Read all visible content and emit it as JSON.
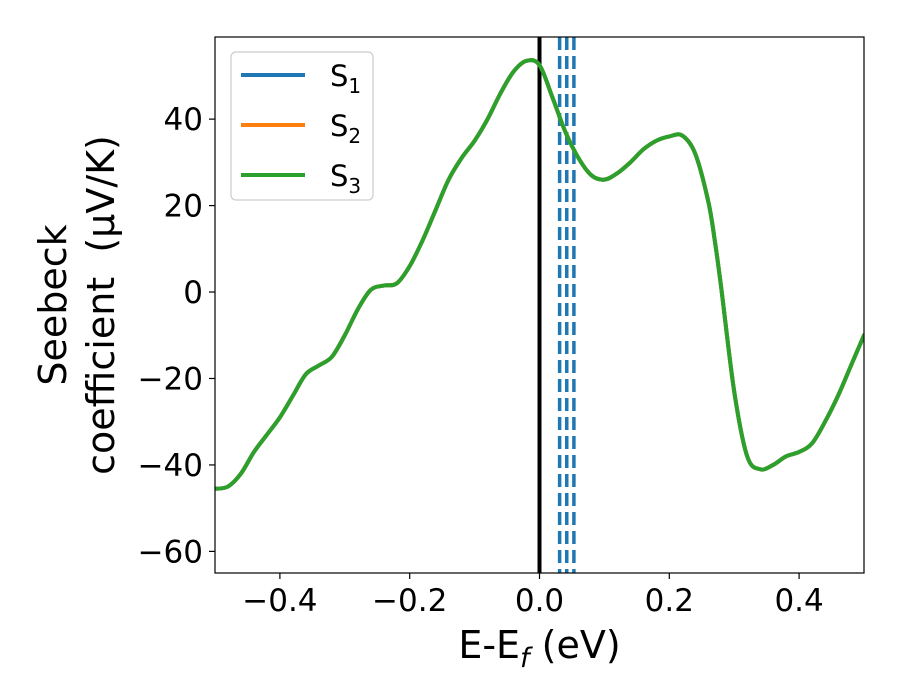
{
  "chart_data": {
    "type": "line",
    "xlabel": "E-E",
    "xlabel_sub": "f",
    "xlabel_unit": "(eV)",
    "ylabel_line1": "Seebeck",
    "ylabel_line2": "coefficient  (μV/K)",
    "xlim": [
      -0.5,
      0.5
    ],
    "ylim": [
      -65,
      59
    ],
    "x_ticks": [
      -0.4,
      -0.2,
      0.0,
      0.2,
      0.4
    ],
    "x_tick_labels": [
      "−0.4",
      "−0.2",
      "0.0",
      "0.2",
      "0.4"
    ],
    "y_ticks": [
      -60,
      -40,
      -20,
      0,
      20,
      40
    ],
    "y_tick_labels": [
      "−60",
      "−40",
      "−20",
      "0",
      "20",
      "40"
    ],
    "legend_position": "upper left",
    "grid": false,
    "series": [
      {
        "name": "S",
        "sub": "1",
        "color": "#1f77b4",
        "x": [
          -0.5,
          -0.48,
          -0.46,
          -0.44,
          -0.42,
          -0.4,
          -0.38,
          -0.36,
          -0.34,
          -0.32,
          -0.3,
          -0.28,
          -0.26,
          -0.24,
          -0.22,
          -0.2,
          -0.18,
          -0.16,
          -0.14,
          -0.12,
          -0.1,
          -0.08,
          -0.06,
          -0.04,
          -0.02,
          0.0,
          0.02,
          0.04,
          0.06,
          0.08,
          0.1,
          0.12,
          0.14,
          0.16,
          0.18,
          0.2,
          0.22,
          0.24,
          0.26,
          0.27,
          0.28,
          0.3,
          0.32,
          0.34,
          0.36,
          0.38,
          0.4,
          0.42,
          0.44,
          0.46,
          0.48,
          0.5
        ],
        "y": [
          -45.5,
          -45,
          -42,
          -37,
          -33,
          -29,
          -24,
          -19,
          -17,
          -15,
          -10,
          -4,
          0.5,
          1.5,
          2,
          6,
          12,
          19,
          26,
          31,
          35,
          40,
          46,
          51,
          53.5,
          52.5,
          45,
          37,
          31,
          27,
          26,
          27.5,
          30,
          33,
          35,
          36,
          36.2,
          32,
          21,
          12,
          1,
          -23,
          -38,
          -41,
          -40,
          -38,
          -37,
          -35,
          -30,
          -24,
          -17,
          -10
        ]
      },
      {
        "name": "S",
        "sub": "2",
        "color": "#ff7f0e",
        "x": [
          -0.5,
          -0.48,
          -0.46,
          -0.44,
          -0.42,
          -0.4,
          -0.38,
          -0.36,
          -0.34,
          -0.32,
          -0.3,
          -0.28,
          -0.26,
          -0.24,
          -0.22,
          -0.2,
          -0.18,
          -0.16,
          -0.14,
          -0.12,
          -0.1,
          -0.08,
          -0.06,
          -0.04,
          -0.02,
          0.0,
          0.02,
          0.04,
          0.06,
          0.08,
          0.1,
          0.12,
          0.14,
          0.16,
          0.18,
          0.2,
          0.22,
          0.24,
          0.26,
          0.27,
          0.28,
          0.3,
          0.32,
          0.34,
          0.36,
          0.38,
          0.4,
          0.42,
          0.44,
          0.46,
          0.48,
          0.5
        ],
        "y": [
          -45.5,
          -45,
          -42,
          -37,
          -33,
          -29,
          -24,
          -19,
          -17,
          -15,
          -10,
          -4,
          0.5,
          1.5,
          2,
          6,
          12,
          19,
          26,
          31,
          35,
          40,
          46,
          51,
          53.5,
          52.5,
          45,
          37,
          31,
          27,
          26,
          27.5,
          30,
          33,
          35,
          36,
          36.2,
          32,
          21,
          12,
          1,
          -23,
          -38,
          -41,
          -40,
          -38,
          -37,
          -35,
          -30,
          -24,
          -17,
          -10
        ]
      },
      {
        "name": "S",
        "sub": "3",
        "color": "#2ca02c",
        "x": [
          -0.5,
          -0.48,
          -0.46,
          -0.44,
          -0.42,
          -0.4,
          -0.38,
          -0.36,
          -0.34,
          -0.32,
          -0.3,
          -0.28,
          -0.26,
          -0.24,
          -0.22,
          -0.2,
          -0.18,
          -0.16,
          -0.14,
          -0.12,
          -0.1,
          -0.08,
          -0.06,
          -0.04,
          -0.02,
          0.0,
          0.02,
          0.04,
          0.06,
          0.08,
          0.1,
          0.12,
          0.14,
          0.16,
          0.18,
          0.2,
          0.22,
          0.24,
          0.26,
          0.27,
          0.28,
          0.3,
          0.32,
          0.34,
          0.36,
          0.38,
          0.4,
          0.42,
          0.44,
          0.46,
          0.48,
          0.5
        ],
        "y": [
          -45.5,
          -45,
          -42,
          -37,
          -33,
          -29,
          -24,
          -19,
          -17,
          -15,
          -10,
          -4,
          0.5,
          1.5,
          2,
          6,
          12,
          19,
          26,
          31,
          35,
          40,
          46,
          51,
          53.5,
          52.5,
          45,
          37,
          31,
          27,
          26,
          27.5,
          30,
          33,
          35,
          36,
          36.2,
          32,
          21,
          12,
          1,
          -23,
          -38,
          -41,
          -40,
          -38,
          -37,
          -35,
          -30,
          -24,
          -17,
          -10
        ]
      }
    ],
    "vertical_lines": [
      {
        "x": 0.0,
        "color": "#000000",
        "style": "solid"
      },
      {
        "x": 0.031,
        "color": "#1f77b4",
        "style": "dashed"
      },
      {
        "x": 0.042,
        "color": "#1f77b4",
        "style": "dashed"
      },
      {
        "x": 0.053,
        "color": "#1f77b4",
        "style": "dashed"
      }
    ]
  }
}
